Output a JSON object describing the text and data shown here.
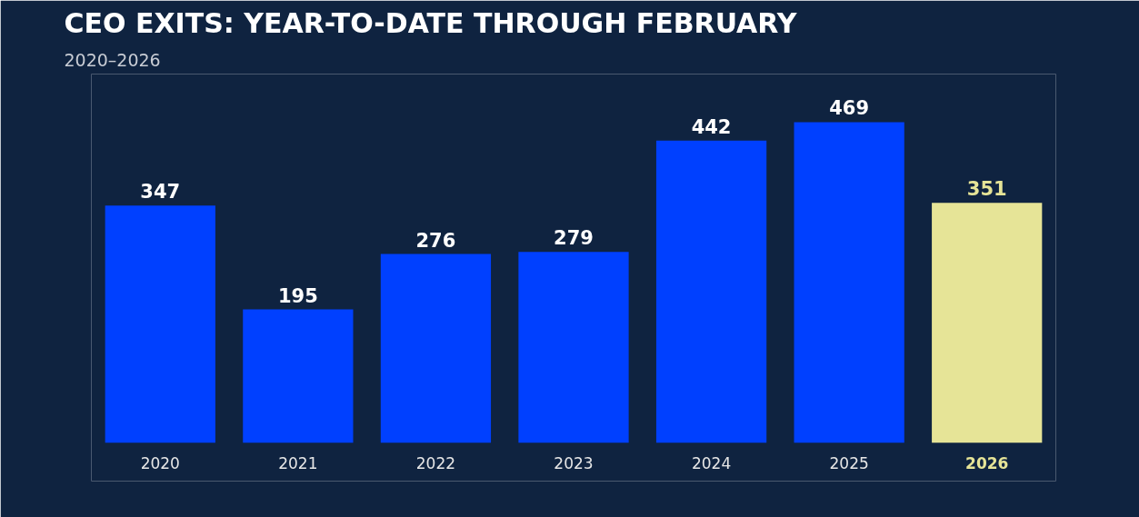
{
  "chart_data": {
    "type": "bar",
    "title": "CEO EXITS: YEAR-TO-DATE THROUGH FEBRUARY",
    "subtitle": "2020–2026",
    "categories": [
      "2020",
      "2021",
      "2022",
      "2023",
      "2024",
      "2025",
      "2026"
    ],
    "values": [
      347,
      195,
      276,
      279,
      442,
      469,
      351
    ],
    "colors": [
      "#0040ff",
      "#0040ff",
      "#0040ff",
      "#0040ff",
      "#0040ff",
      "#0040ff",
      "#e6e497"
    ],
    "data_labels": true,
    "grid": false
  }
}
